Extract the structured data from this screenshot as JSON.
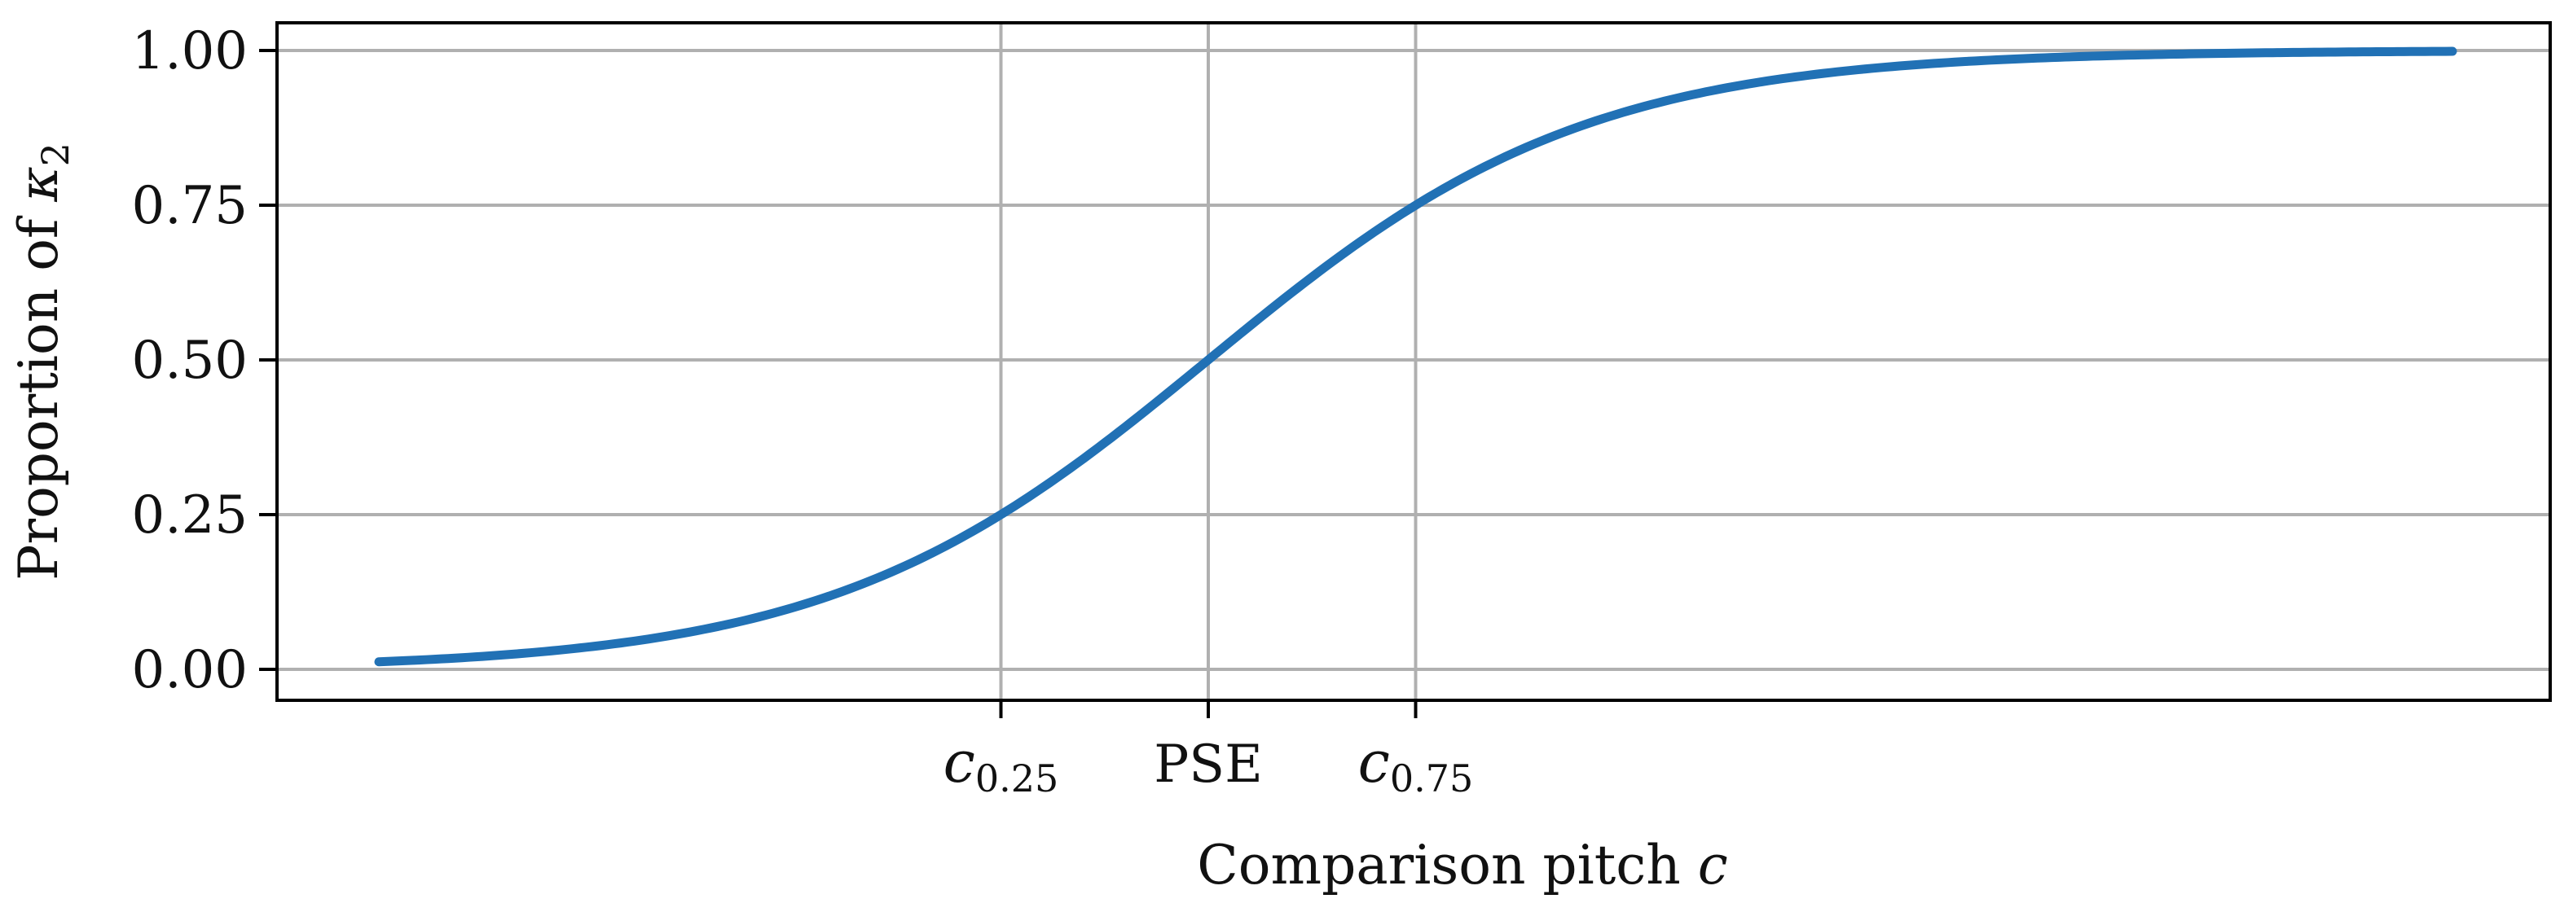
{
  "chart_data": {
    "type": "line",
    "title": "",
    "xlabel": {
      "text": "Comparison pitch ",
      "italic_suffix": "c"
    },
    "ylabel": {
      "text": "Proportion of ",
      "symbol": "κ",
      "subscript": "2"
    },
    "ylim": [
      0,
      1
    ],
    "y_ticks": [
      {
        "value": 0.0,
        "label": "0.00"
      },
      {
        "value": 0.25,
        "label": "0.25"
      },
      {
        "value": 0.5,
        "label": "0.50"
      },
      {
        "value": 0.75,
        "label": "0.75"
      },
      {
        "value": 1.0,
        "label": "1.00"
      }
    ],
    "x_ticks": [
      {
        "value": 0.25,
        "base": "c",
        "sub": "0.25"
      },
      {
        "value": 0.5,
        "text": "PSE"
      },
      {
        "value": 0.75,
        "base": "c",
        "sub": "0.75"
      }
    ],
    "grid": true,
    "series": [
      {
        "color": "#2171b5",
        "curve": "logistic",
        "x_range": [
          -0.5,
          2.0
        ],
        "midpoint": 0.5,
        "scale": 0.2276,
        "points": [
          [
            -0.5,
            0.012
          ],
          [
            -0.25,
            0.036
          ],
          [
            0.0,
            0.099
          ],
          [
            0.25,
            0.25
          ],
          [
            0.5,
            0.5
          ],
          [
            0.75,
            0.75
          ],
          [
            1.0,
            0.901
          ],
          [
            1.25,
            0.964
          ],
          [
            1.5,
            0.988
          ],
          [
            1.75,
            0.996
          ],
          [
            2.0,
            0.999
          ]
        ]
      }
    ]
  }
}
